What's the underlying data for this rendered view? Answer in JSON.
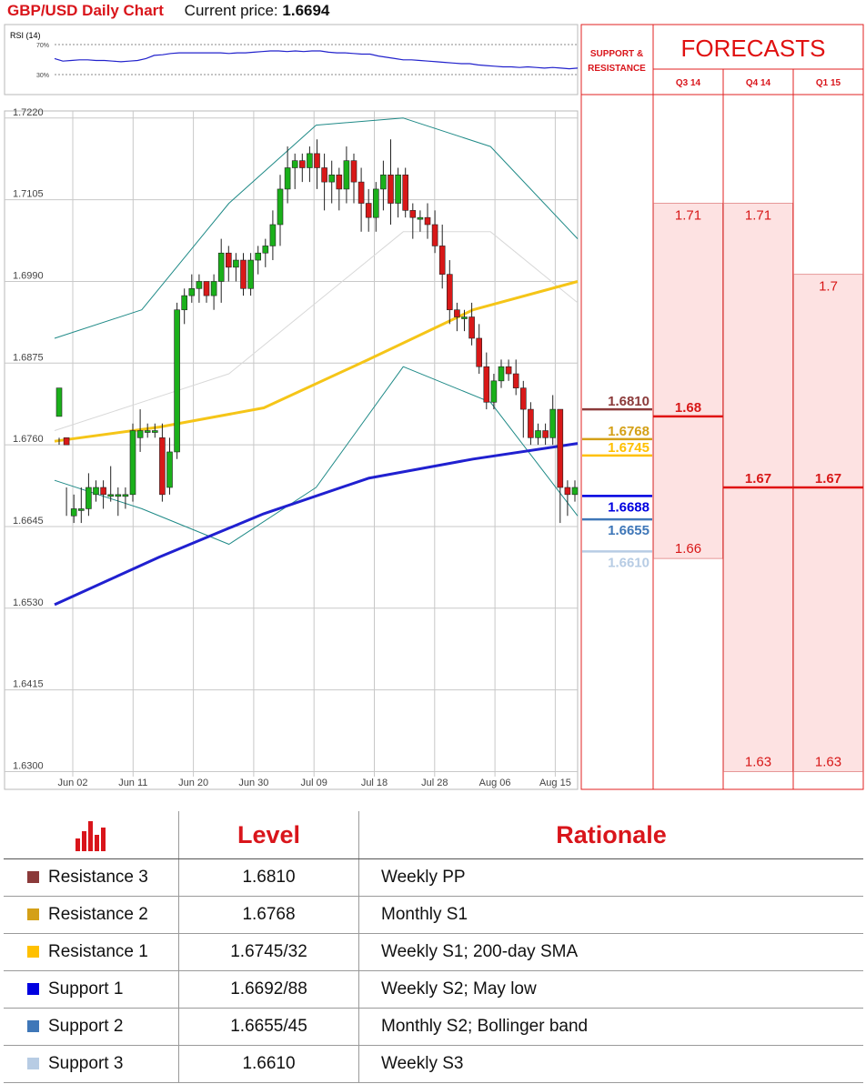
{
  "header": {
    "title": "GBP/USD Daily Chart",
    "current_price_label": "Current price:",
    "current_price": "1.6694"
  },
  "rsi": {
    "label": "RSI (14)",
    "level_70": "70%",
    "level_30": "30%",
    "values": [
      48,
      44,
      45,
      46,
      46,
      45,
      45,
      44,
      43,
      44,
      45,
      48,
      53,
      54,
      56,
      57,
      57,
      57,
      57,
      57,
      57,
      56,
      57,
      57,
      58,
      59,
      60,
      60,
      59,
      60,
      59,
      60,
      60,
      58,
      57,
      57,
      56,
      55,
      55,
      52,
      50,
      48,
      46,
      46,
      45,
      44,
      43,
      42,
      41,
      40,
      40,
      38,
      37,
      36,
      35,
      35,
      34,
      35,
      34,
      33,
      34,
      33,
      32,
      33
    ]
  },
  "chart_data": {
    "type": "candlestick",
    "ylim": [
      1.6275,
      1.723
    ],
    "y_ticks": [
      "1.7220",
      "1.7105",
      "1.6990",
      "1.6875",
      "1.6760",
      "1.6645",
      "1.6530",
      "1.6415",
      "1.6300"
    ],
    "x_ticks": [
      "Jun 02",
      "Jun 11",
      "Jun 20",
      "Jun 30",
      "Jul 09",
      "Jul 18",
      "Jul 28",
      "Aug 06",
      "Aug 15"
    ],
    "candles": [
      [
        1.68,
        1.684,
        1.676,
        1.677
      ],
      [
        1.677,
        1.676,
        1.67,
        1.666
      ],
      [
        1.666,
        1.667,
        1.669,
        1.665
      ],
      [
        1.667,
        1.667,
        1.67,
        1.665
      ],
      [
        1.667,
        1.67,
        1.672,
        1.666
      ],
      [
        1.669,
        1.67,
        1.671,
        1.668
      ],
      [
        1.67,
        1.669,
        1.671,
        1.667
      ],
      [
        1.669,
        1.669,
        1.673,
        1.668
      ],
      [
        1.669,
        1.669,
        1.67,
        1.666
      ],
      [
        1.669,
        1.669,
        1.67,
        1.667
      ],
      [
        1.669,
        1.678,
        1.679,
        1.668
      ],
      [
        1.677,
        1.678,
        1.681,
        1.675
      ],
      [
        1.678,
        1.678,
        1.679,
        1.677
      ],
      [
        1.678,
        1.678,
        1.679,
        1.677
      ],
      [
        1.677,
        1.669,
        1.679,
        1.668
      ],
      [
        1.67,
        1.675,
        1.677,
        1.669
      ],
      [
        1.675,
        1.695,
        1.696,
        1.674
      ],
      [
        1.695,
        1.697,
        1.698,
        1.693
      ],
      [
        1.697,
        1.698,
        1.7,
        1.696
      ],
      [
        1.698,
        1.699,
        1.7,
        1.696
      ],
      [
        1.699,
        1.697,
        1.699,
        1.696
      ],
      [
        1.697,
        1.699,
        1.7,
        1.695
      ],
      [
        1.699,
        1.703,
        1.705,
        1.696
      ],
      [
        1.703,
        1.701,
        1.704,
        1.699
      ],
      [
        1.701,
        1.702,
        1.703,
        1.699
      ],
      [
        1.702,
        1.698,
        1.703,
        1.697
      ],
      [
        1.698,
        1.702,
        1.703,
        1.697
      ],
      [
        1.702,
        1.703,
        1.704,
        1.7
      ],
      [
        1.703,
        1.704,
        1.705,
        1.701
      ],
      [
        1.704,
        1.707,
        1.709,
        1.702
      ],
      [
        1.707,
        1.712,
        1.714,
        1.704
      ],
      [
        1.712,
        1.715,
        1.718,
        1.71
      ],
      [
        1.715,
        1.716,
        1.717,
        1.712
      ],
      [
        1.716,
        1.715,
        1.717,
        1.713
      ],
      [
        1.715,
        1.717,
        1.718,
        1.713
      ],
      [
        1.717,
        1.715,
        1.719,
        1.712
      ],
      [
        1.715,
        1.713,
        1.717,
        1.709
      ],
      [
        1.713,
        1.714,
        1.716,
        1.71
      ],
      [
        1.714,
        1.712,
        1.715,
        1.709
      ],
      [
        1.712,
        1.716,
        1.718,
        1.71
      ],
      [
        1.716,
        1.713,
        1.717,
        1.71
      ],
      [
        1.713,
        1.71,
        1.715,
        1.706
      ],
      [
        1.71,
        1.708,
        1.712,
        1.706
      ],
      [
        1.708,
        1.712,
        1.713,
        1.706
      ],
      [
        1.712,
        1.714,
        1.716,
        1.709
      ],
      [
        1.714,
        1.71,
        1.719,
        1.707
      ],
      [
        1.71,
        1.714,
        1.715,
        1.708
      ],
      [
        1.714,
        1.709,
        1.715,
        1.708
      ],
      [
        1.709,
        1.708,
        1.71,
        1.705
      ],
      [
        1.708,
        1.708,
        1.709,
        1.706
      ],
      [
        1.708,
        1.707,
        1.71,
        1.705
      ],
      [
        1.707,
        1.704,
        1.709,
        1.703
      ],
      [
        1.704,
        1.7,
        1.707,
        1.698
      ],
      [
        1.7,
        1.695,
        1.702,
        1.693
      ],
      [
        1.695,
        1.694,
        1.696,
        1.692
      ],
      [
        1.694,
        1.694,
        1.695,
        1.692
      ],
      [
        1.694,
        1.691,
        1.696,
        1.69
      ],
      [
        1.691,
        1.687,
        1.693,
        1.686
      ],
      [
        1.687,
        1.682,
        1.689,
        1.681
      ],
      [
        1.682,
        1.685,
        1.686,
        1.681
      ],
      [
        1.685,
        1.687,
        1.688,
        1.684
      ],
      [
        1.687,
        1.686,
        1.688,
        1.685
      ],
      [
        1.686,
        1.684,
        1.688,
        1.683
      ],
      [
        1.684,
        1.681,
        1.685,
        1.677
      ],
      [
        1.681,
        1.677,
        1.682,
        1.676
      ],
      [
        1.677,
        1.678,
        1.679,
        1.676
      ],
      [
        1.678,
        1.677,
        1.679,
        1.676
      ],
      [
        1.677,
        1.681,
        1.683,
        1.676
      ],
      [
        1.681,
        1.67,
        1.681,
        1.665
      ],
      [
        1.67,
        1.669,
        1.671,
        1.666
      ],
      [
        1.669,
        1.67,
        1.671,
        1.668
      ]
    ],
    "sma200": [
      1.6535,
      1.6602,
      1.6663,
      1.6713,
      1.674,
      1.6762
    ],
    "sma100": [
      1.6765,
      1.6785,
      1.6812,
      1.688,
      1.695,
      1.699
    ],
    "bb_upper": [
      1.691,
      1.695,
      1.71,
      1.721,
      1.722,
      1.718,
      1.705
    ],
    "bb_lower": [
      1.671,
      1.667,
      1.662,
      1.67,
      1.687,
      1.682,
      1.666
    ],
    "bb_mid": [
      1.678,
      1.682,
      1.686,
      1.696,
      1.706,
      1.706,
      1.696
    ]
  },
  "levels_panel": {
    "header": "SUPPORT & RESISTANCE",
    "resistance_3": "1.6810",
    "resistance_2": "1.6768",
    "resistance_1": "1.6745",
    "support_1": "1.6688",
    "support_2": "1.6655",
    "support_3": "1.6610"
  },
  "forecasts": {
    "title": "FORECASTS",
    "columns": [
      {
        "label": "Q3 14",
        "high": "1.71",
        "mid": "1.68",
        "low": "1.66"
      },
      {
        "label": "Q4 14",
        "high": "1.71",
        "mid": "1.67",
        "low": "1.63"
      },
      {
        "label": "Q1 15",
        "high": "1.7",
        "mid": "1.67",
        "low": "1.63"
      }
    ],
    "values_numeric": [
      [
        1.66,
        1.68,
        1.71
      ],
      [
        1.63,
        1.67,
        1.71
      ],
      [
        1.63,
        1.67,
        1.7
      ]
    ]
  },
  "colors": {
    "resistance_3": "#8b3a3a",
    "resistance_2": "#d4a017",
    "resistance_1": "#ffc000",
    "support_1": "#0000e0",
    "support_2": "#3f77b8",
    "support_3": "#b7cce4",
    "accent": "#d9151b",
    "sma200": "#2020d0",
    "sma100": "#f5c518",
    "bollinger": "#1f8a87",
    "bull": "#1ab01a",
    "bear": "#d81818",
    "forecast_fill": "#fde2e2"
  },
  "table": {
    "headers": {
      "icon": "bar-chart-icon",
      "level": "Level",
      "rationale": "Rationale"
    },
    "rows": [
      {
        "name": "Resistance 3",
        "level": "1.6810",
        "rationale": "Weekly PP",
        "color": "#8b3a3a"
      },
      {
        "name": "Resistance 2",
        "level": "1.6768",
        "rationale": "Monthly S1",
        "color": "#d4a017"
      },
      {
        "name": "Resistance 1",
        "level": "1.6745/32",
        "rationale": "Weekly S1; 200-day SMA",
        "color": "#ffc000"
      },
      {
        "name": "Support 1",
        "level": "1.6692/88",
        "rationale": "Weekly S2; May low",
        "color": "#0000e0"
      },
      {
        "name": "Support 2",
        "level": "1.6655/45",
        "rationale": "Monthly S2; Bollinger band",
        "color": "#3f77b8"
      },
      {
        "name": "Support 3",
        "level": "1.6610",
        "rationale": "Weekly S3",
        "color": "#b7cce4"
      }
    ]
  }
}
